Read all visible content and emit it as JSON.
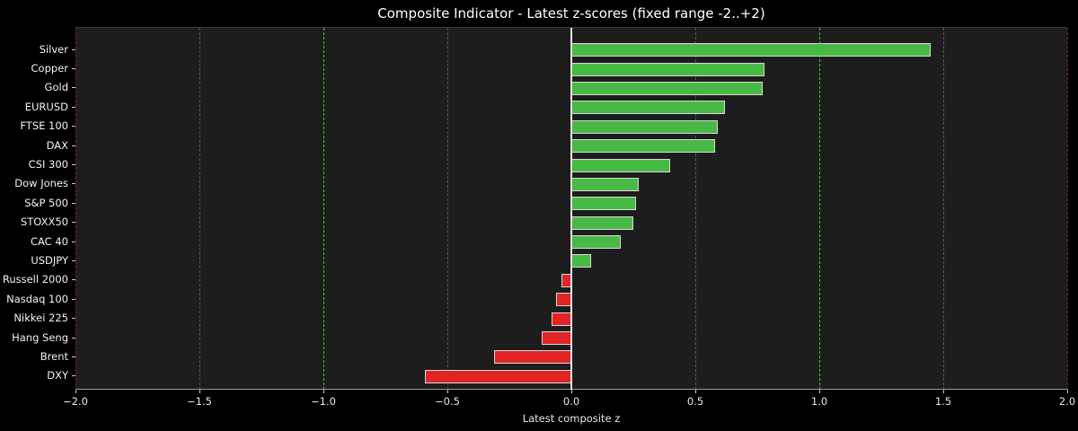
{
  "title": "Composite Indicator - Latest z-scores (fixed range -2..+2)",
  "chart_data": {
    "type": "bar",
    "orientation": "horizontal",
    "title": "Composite Indicator - Latest z-scores (fixed range -2..+2)",
    "xlabel": "Latest composite z",
    "xlim": [
      -2.0,
      2.0
    ],
    "xticks": [
      -2.0,
      -1.5,
      -1.0,
      -0.5,
      0.0,
      0.5,
      1.0,
      1.5,
      2.0
    ],
    "xtick_labels": [
      "−2.0",
      "−1.5",
      "−1.0",
      "−0.5",
      "0.0",
      "0.5",
      "1.0",
      "1.5",
      "2.0"
    ],
    "categories": [
      "Silver",
      "Copper",
      "Gold",
      "EURUSD",
      "FTSE 100",
      "DAX",
      "CSI 300",
      "Dow Jones",
      "S&P 500",
      "STOXX50",
      "CAC 40",
      "USDJPY",
      "Russell 2000",
      "Nasdaq 100",
      "Nikkei 225",
      "Hang Seng",
      "Brent",
      "DXY"
    ],
    "values": [
      1.45,
      0.78,
      0.77,
      0.62,
      0.59,
      0.58,
      0.4,
      0.27,
      0.26,
      0.25,
      0.2,
      0.08,
      -0.04,
      -0.06,
      -0.08,
      -0.12,
      -0.31,
      -0.59
    ],
    "zero_line": 0.0,
    "threshold_lines": [
      {
        "x": -1.0,
        "color": "#2fd32f",
        "style": "dashed"
      },
      {
        "x": 1.0,
        "color": "#2fd32f",
        "style": "dashed"
      },
      {
        "x": -2.0,
        "color": "#7e2222",
        "style": "dashed"
      },
      {
        "x": 2.0,
        "color": "#7e2222",
        "style": "dashed"
      }
    ],
    "grid": true,
    "legend": false,
    "colors": {
      "positive": "#48b944",
      "negative": "#e12424",
      "bar_edge": "#d9d9d9",
      "grid": "#5c5c5c",
      "zero_line": "#e6e6e6",
      "threshold_inner": "#2fd32f",
      "threshold_outer": "#7e2222",
      "background": "#000000",
      "plot_background": "#1d1d1d",
      "text": "#f2f2f2"
    }
  }
}
